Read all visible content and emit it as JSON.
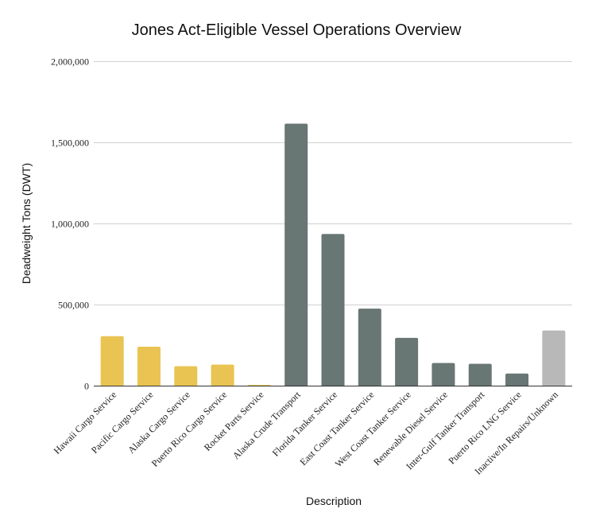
{
  "chart_data": {
    "type": "bar",
    "title": "Jones Act-Eligible Vessel Operations Overview",
    "xlabel": "Description",
    "ylabel": "Deadweight Tons (DWT)",
    "ylim": [
      0,
      2000000
    ],
    "yticks": [
      0,
      500000,
      1000000,
      1500000,
      2000000
    ],
    "ytick_labels": [
      "0",
      "500,000",
      "1,000,000",
      "1,500,000",
      "2,000,000"
    ],
    "grid": true,
    "categories": [
      "Hawaii Cargo Service",
      "Pacific Cargo Service",
      "Alaska Cargo Service",
      "Puerto Rico Cargo Service",
      "Rocket Parts Service",
      "Alaska Crude Transport",
      "Florida Tanker Service",
      "East Coast Tanker Service",
      "West Coast Tanker Service",
      "Renewable Diesel Service",
      "Inter-Gulf Tanker Transport",
      "Puerto Rico LNG Service",
      "Inactive/In Repairs/Unknown"
    ],
    "values": [
      305000,
      240000,
      120000,
      130000,
      5000,
      1615000,
      935000,
      475000,
      295000,
      140000,
      135000,
      75000,
      340000
    ],
    "colors": [
      "#e9c452",
      "#e9c452",
      "#e9c452",
      "#e9c452",
      "#e9c452",
      "#687674",
      "#687674",
      "#687674",
      "#687674",
      "#687674",
      "#687674",
      "#687674",
      "#b8b8b8"
    ]
  }
}
